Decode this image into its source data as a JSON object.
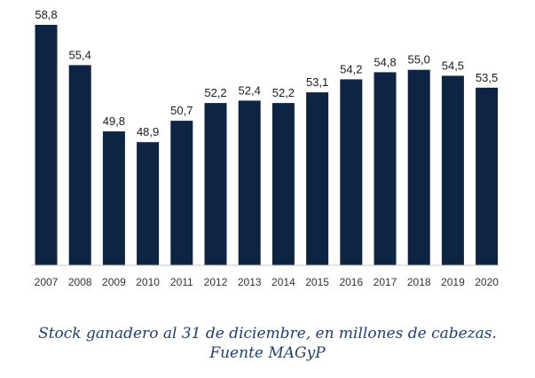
{
  "chart_data": {
    "type": "bar",
    "categories": [
      "2007",
      "2008",
      "2009",
      "2010",
      "2011",
      "2012",
      "2013",
      "2014",
      "2015",
      "2016",
      "2017",
      "2018",
      "2019",
      "2020"
    ],
    "values": [
      58.8,
      55.4,
      49.8,
      48.9,
      50.7,
      52.2,
      52.4,
      52.2,
      53.1,
      54.2,
      54.8,
      55.0,
      54.5,
      53.5
    ],
    "value_labels": [
      "58,8",
      "55,4",
      "49,8",
      "48,9",
      "50,7",
      "52,2",
      "52,4",
      "52,2",
      "53,1",
      "54,2",
      "54,8",
      "55,0",
      "54,5",
      "53,5"
    ],
    "bar_color": "#0d2442",
    "ylim": [
      38.5,
      58.8
    ],
    "grid": false,
    "legend": "none"
  },
  "caption": {
    "line1": "Stock ganadero al 31 de diciembre, en millones de cabezas.",
    "line2": "Fuente MAGyP"
  }
}
